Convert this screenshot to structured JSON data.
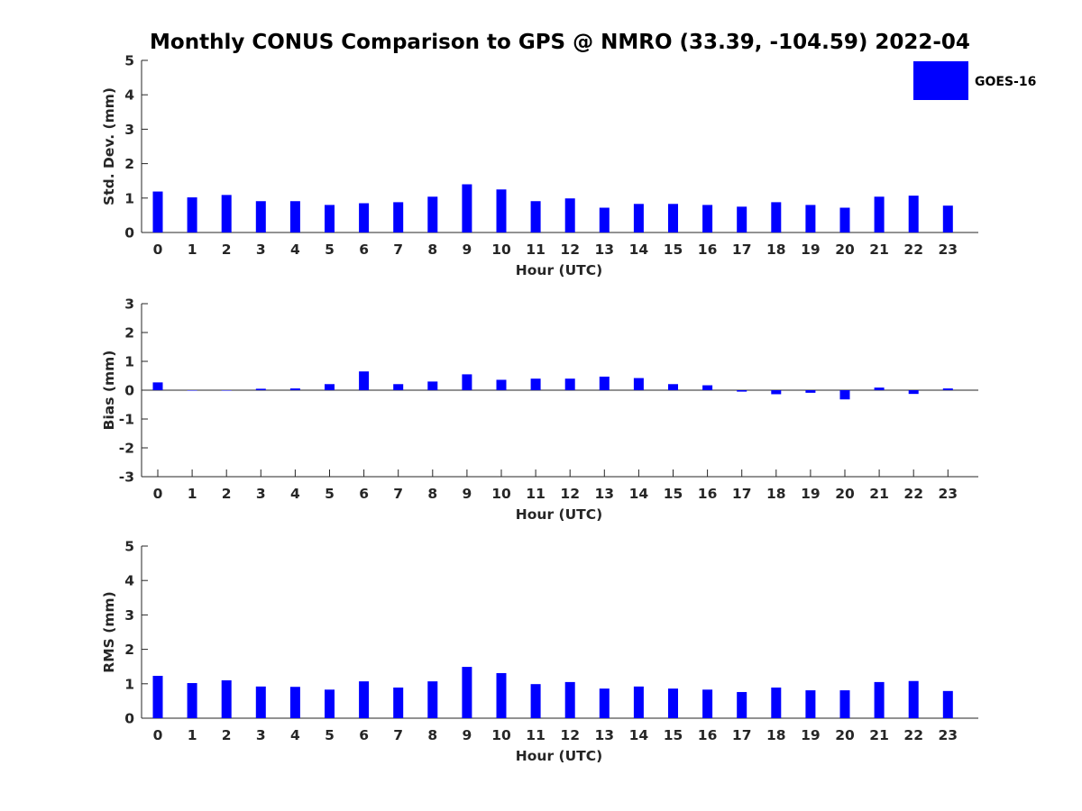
{
  "title": "Monthly CONUS Comparison to GPS @ NMRO (33.39, -104.59) 2022-04",
  "legend": {
    "label": "GOES-16",
    "color": "#0000ff"
  },
  "chart_data": [
    {
      "type": "bar",
      "name": "std",
      "ylabel": "Std. Dev. (mm)",
      "xlabel": "Hour (UTC)",
      "ylim": [
        0,
        5
      ],
      "yticks": [
        "0",
        "1",
        "2",
        "3",
        "4",
        "5"
      ],
      "categories": [
        "0",
        "1",
        "2",
        "3",
        "4",
        "5",
        "6",
        "7",
        "8",
        "9",
        "10",
        "11",
        "12",
        "13",
        "14",
        "15",
        "16",
        "17",
        "18",
        "19",
        "20",
        "21",
        "22",
        "23"
      ],
      "values": [
        1.19,
        1.02,
        1.09,
        0.91,
        0.91,
        0.8,
        0.85,
        0.88,
        1.04,
        1.4,
        1.25,
        0.91,
        0.99,
        0.72,
        0.83,
        0.83,
        0.8,
        0.75,
        0.88,
        0.8,
        0.72,
        1.04,
        1.07,
        0.78
      ]
    },
    {
      "type": "bar",
      "name": "bias",
      "ylabel": "Bias (mm)",
      "xlabel": "Hour (UTC)",
      "ylim": [
        -3,
        3
      ],
      "yticks": [
        "-3",
        "-2",
        "-1",
        "0",
        "1",
        "2",
        "3"
      ],
      "categories": [
        "0",
        "1",
        "2",
        "3",
        "4",
        "5",
        "6",
        "7",
        "8",
        "9",
        "10",
        "11",
        "12",
        "13",
        "14",
        "15",
        "16",
        "17",
        "18",
        "19",
        "20",
        "21",
        "22",
        "23"
      ],
      "values": [
        0.27,
        0.0,
        -0.01,
        0.05,
        0.06,
        0.21,
        0.65,
        0.21,
        0.3,
        0.55,
        0.36,
        0.4,
        0.4,
        0.47,
        0.42,
        0.21,
        0.17,
        -0.05,
        -0.14,
        -0.09,
        -0.32,
        0.09,
        -0.13,
        0.06
      ]
    },
    {
      "type": "bar",
      "name": "rms",
      "ylabel": "RMS (mm)",
      "xlabel": "Hour (UTC)",
      "ylim": [
        0,
        5
      ],
      "yticks": [
        "0",
        "1",
        "2",
        "3",
        "4",
        "5"
      ],
      "categories": [
        "0",
        "1",
        "2",
        "3",
        "4",
        "5",
        "6",
        "7",
        "8",
        "9",
        "10",
        "11",
        "12",
        "13",
        "14",
        "15",
        "16",
        "17",
        "18",
        "19",
        "20",
        "21",
        "22",
        "23"
      ],
      "values": [
        1.23,
        1.02,
        1.1,
        0.92,
        0.91,
        0.83,
        1.07,
        0.89,
        1.07,
        1.49,
        1.31,
        0.99,
        1.05,
        0.86,
        0.92,
        0.86,
        0.83,
        0.76,
        0.89,
        0.81,
        0.81,
        1.05,
        1.08,
        0.79
      ]
    }
  ]
}
